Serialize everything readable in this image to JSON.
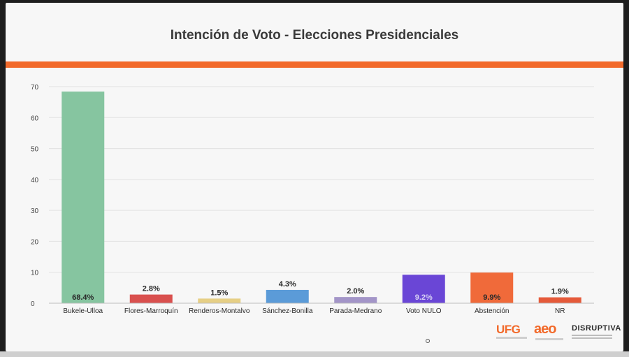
{
  "slide": {
    "title": "Intención de Voto - Elecciones Presidenciales"
  },
  "logos": {
    "ufg": "UFG",
    "aeo": "aeo",
    "disruptiva": "DISRUPTIVA"
  },
  "colors": {
    "accent_rule": "#f26a2b",
    "grid": "#e2e2e2"
  },
  "chart_data": {
    "type": "bar",
    "title": "Intención de Voto - Elecciones Presidenciales",
    "xlabel": "",
    "ylabel": "",
    "ylim": [
      0,
      70
    ],
    "yticks": [
      0,
      10,
      20,
      30,
      40,
      50,
      60,
      70
    ],
    "grid": true,
    "categories": [
      "Bukele-Ulloa",
      "Flores-Marroquín",
      "Renderos-Montalvo",
      "Sánchez-Bonilla",
      "Parada-Medrano",
      "Voto NULO",
      "Abstención",
      "NR"
    ],
    "values": [
      68.4,
      2.8,
      1.5,
      4.3,
      2.0,
      9.2,
      9.9,
      1.9
    ],
    "data_labels": [
      "68.4%",
      "2.8%",
      "1.5%",
      "4.3%",
      "2.0%",
      "9.2%",
      "9.9%",
      "1.9%"
    ],
    "colors": [
      "#86c5a0",
      "#d9504e",
      "#e6cf85",
      "#5b9bd8",
      "#a395c8",
      "#6a46d6",
      "#f06a3a",
      "#e55a3a"
    ],
    "label_colors": [
      "#2a2a2a",
      "#2a2a2a",
      "#2a2a2a",
      "#2a2a2a",
      "#2a2a2a",
      "#d8d2f4",
      "#2a2a2a",
      "#2a2a2a"
    ],
    "label_inside": [
      true,
      false,
      false,
      false,
      false,
      true,
      true,
      false
    ]
  }
}
